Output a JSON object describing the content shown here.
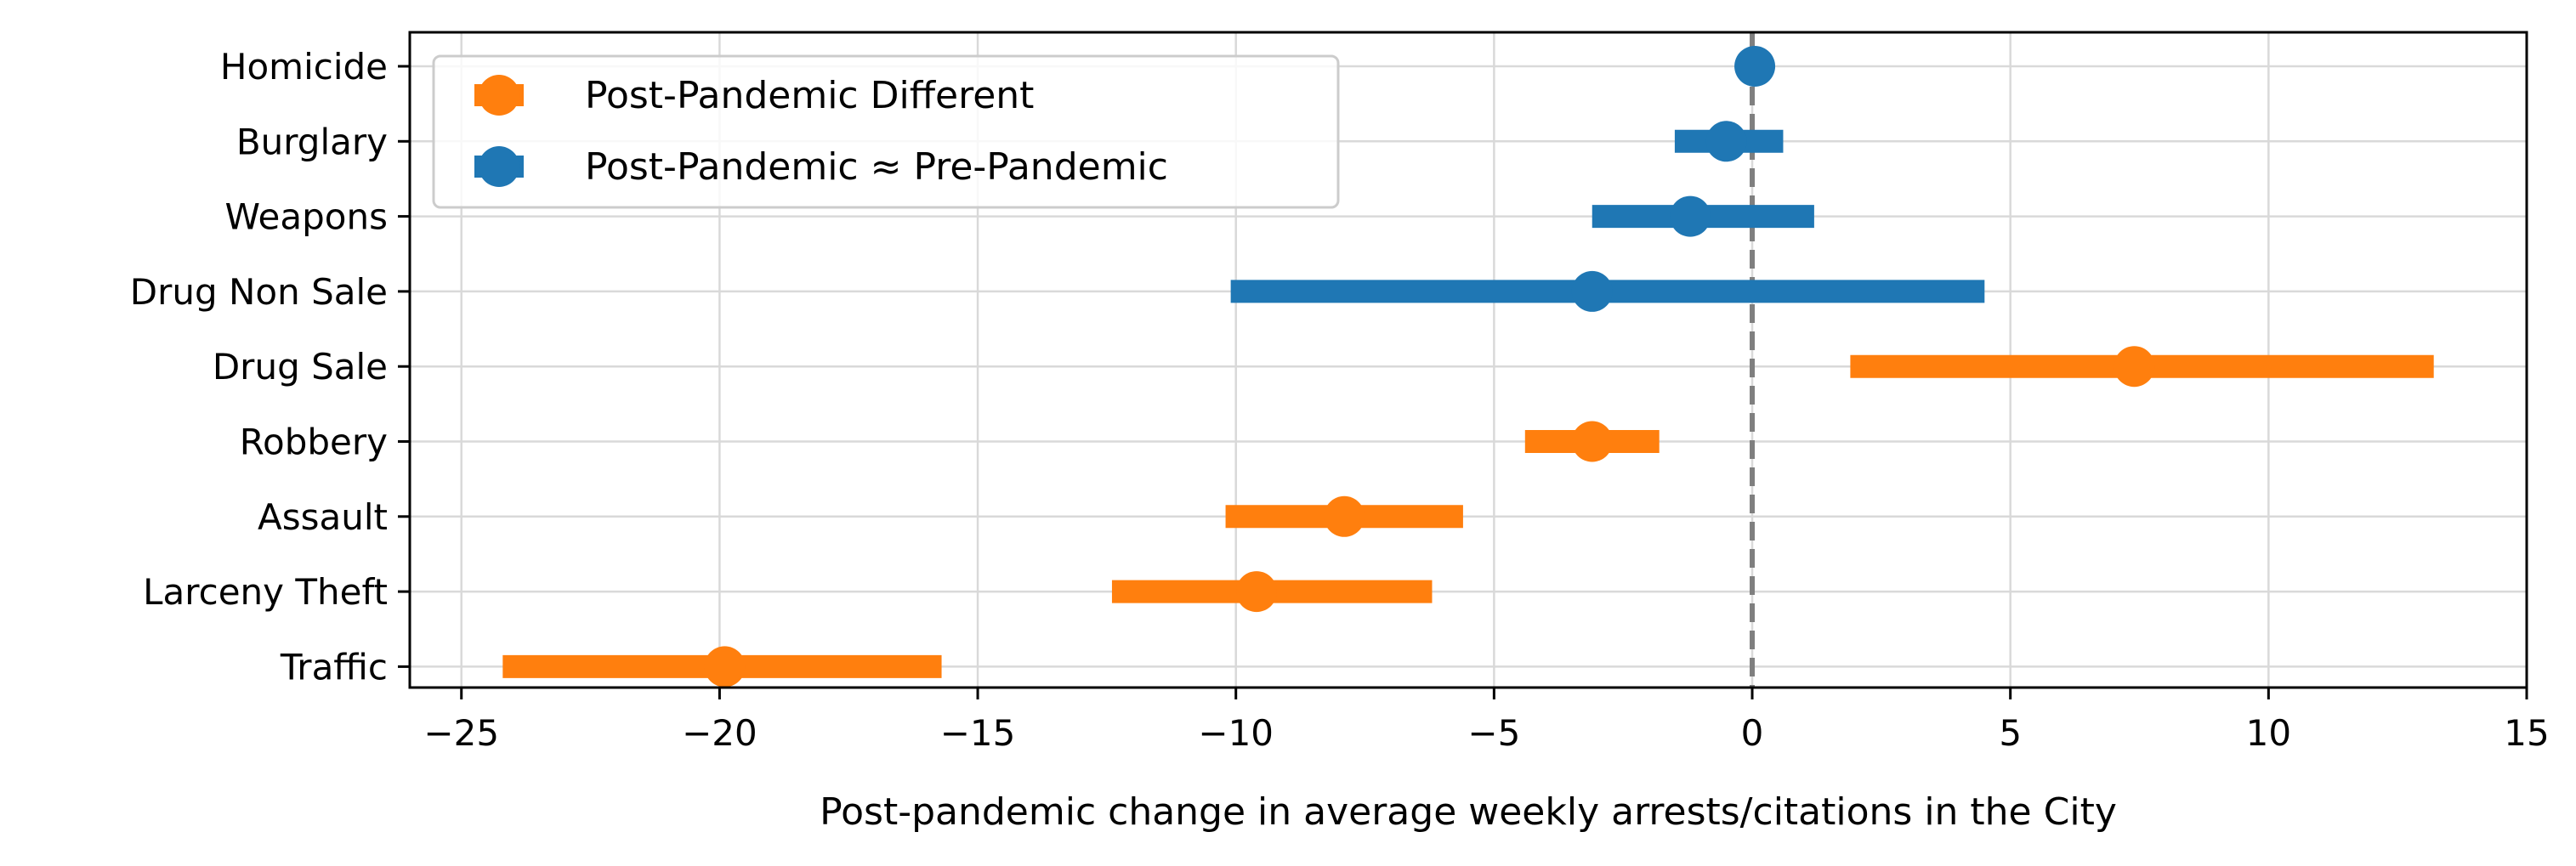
{
  "chart_data": {
    "type": "forest",
    "title": "",
    "xlabel": "Post-pandemic change in average weekly arrests/citations in the City",
    "ylabel": "",
    "xlim": [
      -26,
      15
    ],
    "xticks": [
      -25,
      -20,
      -15,
      -10,
      -5,
      0,
      5,
      10,
      15
    ],
    "xtick_labels": [
      "−25",
      "−20",
      "−15",
      "−10",
      "−5",
      "0",
      "5",
      "10",
      "15"
    ],
    "grid": true,
    "reference_line": {
      "x": 0,
      "style": "dashed",
      "color": "#7f7f7f"
    },
    "legend": {
      "position": "top-left",
      "entries": [
        {
          "label": "Post-Pandemic Different",
          "color": "#ff7f0e"
        },
        {
          "label": "Post-Pandemic ≈ Pre-Pandemic",
          "color": "#1f77b4"
        }
      ]
    },
    "categories": [
      "Homicide",
      "Burglary",
      "Weapons",
      "Drug Non Sale",
      "Drug Sale",
      "Robbery",
      "Assault",
      "Larceny Theft",
      "Traffic"
    ],
    "series": [
      {
        "name": "Post-Pandemic Different",
        "color": "#ff7f0e",
        "points": [
          {
            "category": "Drug Sale",
            "estimate": 7.4,
            "low": 1.9,
            "high": 13.2
          },
          {
            "category": "Robbery",
            "estimate": -3.1,
            "low": -4.4,
            "high": -1.8
          },
          {
            "category": "Assault",
            "estimate": -7.9,
            "low": -10.2,
            "high": -5.6
          },
          {
            "category": "Larceny Theft",
            "estimate": -9.6,
            "low": -12.4,
            "high": -6.2
          },
          {
            "category": "Traffic",
            "estimate": -19.9,
            "low": -24.2,
            "high": -15.7
          }
        ]
      },
      {
        "name": "Post-Pandemic ≈ Pre-Pandemic",
        "color": "#1f77b4",
        "points": [
          {
            "category": "Homicide",
            "estimate": 0.05,
            "low": 0.05,
            "high": 0.05
          },
          {
            "category": "Burglary",
            "estimate": -0.5,
            "low": -1.5,
            "high": 0.6
          },
          {
            "category": "Weapons",
            "estimate": -1.2,
            "low": -3.1,
            "high": 1.2
          },
          {
            "category": "Drug Non Sale",
            "estimate": -3.1,
            "low": -10.1,
            "high": 4.5
          }
        ]
      }
    ]
  }
}
